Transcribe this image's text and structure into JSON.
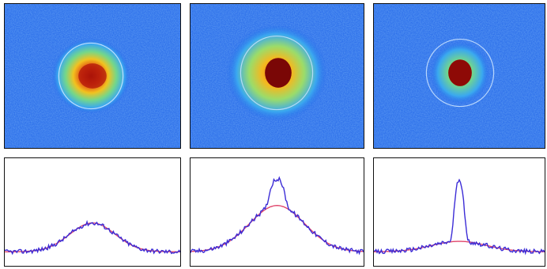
{
  "colors": {
    "colormap_background": "#1f63e8",
    "fit_curve": "#e0446a",
    "profile_curve": "#3b2bd6",
    "frame": "#111111"
  },
  "panels": [
    {
      "id": 1,
      "cloud_radius": 0.23,
      "core_radius": 0.0,
      "core_strength": 0.0,
      "ring_radius": 0.3,
      "profile_thermal_peak": 0.33,
      "profile_core_peak": 0.0
    },
    {
      "id": 2,
      "cloud_radius": 0.3,
      "core_radius": 0.1,
      "core_strength": 1.0,
      "ring_radius": 0.32,
      "profile_thermal_peak": 0.53,
      "profile_core_peak": 0.3
    },
    {
      "id": 3,
      "cloud_radius": 0.2,
      "core_radius": 0.08,
      "core_strength": 1.0,
      "ring_radius": 0.28,
      "profile_thermal_peak": 0.12,
      "profile_core_peak": 0.68
    }
  ]
}
